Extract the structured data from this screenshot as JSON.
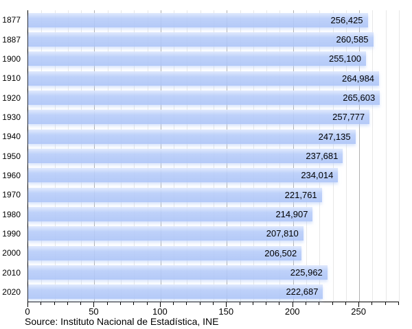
{
  "chart_data": {
    "type": "bar",
    "orientation": "horizontal",
    "title": "",
    "xlabel": "",
    "ylabel": "",
    "categories": [
      "1877",
      "1887",
      "1900",
      "1910",
      "1920",
      "1930",
      "1940",
      "1950",
      "1960",
      "1970",
      "1980",
      "1990",
      "2000",
      "2010",
      "2020"
    ],
    "values": [
      256425,
      260585,
      255100,
      264984,
      265603,
      257777,
      247135,
      237681,
      234014,
      221761,
      214907,
      207810,
      206502,
      225962,
      222687
    ],
    "value_labels": [
      "256,425",
      "260,585",
      "255,100",
      "264,984",
      "265,603",
      "257,777",
      "247,135",
      "237,681",
      "234,014",
      "221,761",
      "214,907",
      "207,810",
      "206,502",
      "225,962",
      "222,687"
    ],
    "axis_unit_divisor": 1000,
    "xlim": [
      0,
      280
    ],
    "x_major_ticks": [
      0,
      50,
      100,
      150,
      200,
      250
    ],
    "x_minor_tick_step": 10,
    "grid": "vertical",
    "legend": "none"
  },
  "source_note": "Source: Instituto Nacional de Estadística, INE",
  "colors": {
    "bar_fill": "#b2c7f8",
    "bar_highlight": "#dfe8fd",
    "grid_minor": "#e7e7e7",
    "grid_major": "#b0b0b0",
    "axis": "#000000",
    "text": "#000000"
  }
}
